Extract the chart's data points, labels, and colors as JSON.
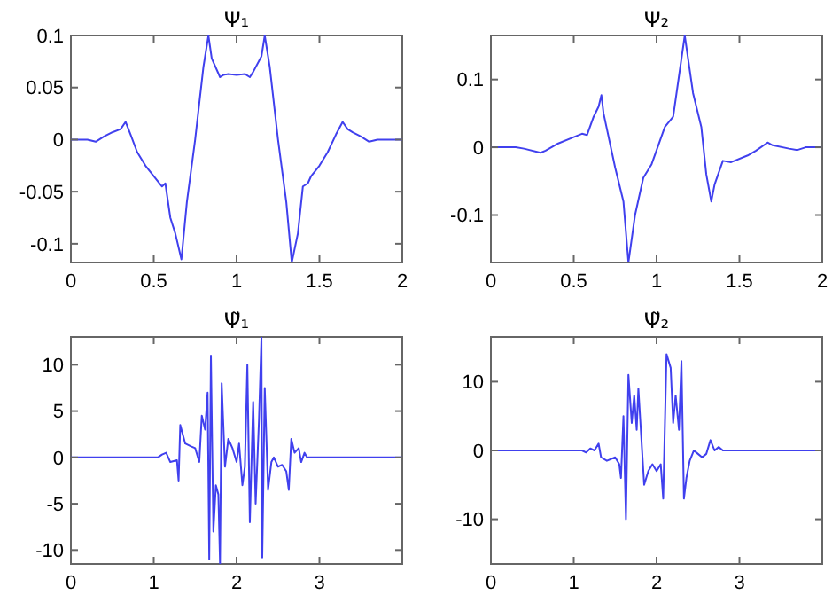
{
  "chart_data": [
    {
      "type": "line",
      "title": "Ψ₁",
      "xlim": [
        0,
        2
      ],
      "ylim": [
        -0.118,
        0.1
      ],
      "xticks": [
        0,
        0.5,
        1,
        1.5,
        2
      ],
      "yticks": [
        -0.1,
        -0.05,
        0,
        0.05,
        0.1
      ],
      "color": "#4040ee",
      "x": [
        0,
        0.1,
        0.15,
        0.2,
        0.25,
        0.3,
        0.33,
        0.36,
        0.4,
        0.45,
        0.5,
        0.55,
        0.57,
        0.6,
        0.63,
        0.667,
        0.7,
        0.75,
        0.8,
        0.83,
        0.85,
        0.9,
        0.92,
        0.95,
        1.0,
        1.05,
        1.08,
        1.1,
        1.15,
        1.17,
        1.2,
        1.25,
        1.3,
        1.333,
        1.37,
        1.4,
        1.43,
        1.45,
        1.5,
        1.55,
        1.6,
        1.64,
        1.67,
        1.7,
        1.75,
        1.8,
        1.85,
        1.9,
        2
      ],
      "values": [
        0,
        0,
        -0.002,
        0.003,
        0.007,
        0.01,
        0.017,
        0.005,
        -0.012,
        -0.025,
        -0.035,
        -0.045,
        -0.042,
        -0.075,
        -0.09,
        -0.115,
        -0.06,
        0,
        0.07,
        0.1,
        0.078,
        0.06,
        0.062,
        0.063,
        0.062,
        0.063,
        0.06,
        0.065,
        0.08,
        0.1,
        0.07,
        0,
        -0.06,
        -0.118,
        -0.09,
        -0.045,
        -0.042,
        -0.035,
        -0.025,
        -0.012,
        0.005,
        0.017,
        0.01,
        0.007,
        0.003,
        -0.002,
        0,
        0,
        0
      ]
    },
    {
      "type": "line",
      "title": "Ψ₂",
      "xlim": [
        0,
        2
      ],
      "ylim": [
        -0.17,
        0.165
      ],
      "xticks": [
        0,
        0.5,
        1,
        1.5,
        2
      ],
      "yticks": [
        -0.1,
        0,
        0.1
      ],
      "color": "#4040ee",
      "x": [
        0,
        0.15,
        0.2,
        0.3,
        0.33,
        0.4,
        0.5,
        0.55,
        0.58,
        0.62,
        0.65,
        0.667,
        0.68,
        0.75,
        0.8,
        0.83,
        0.87,
        0.92,
        0.97,
        1.05,
        1.1,
        1.17,
        1.22,
        1.27,
        1.3,
        1.33,
        1.35,
        1.4,
        1.45,
        1.55,
        1.6,
        1.67,
        1.7,
        1.8,
        1.85,
        1.9,
        2
      ],
      "values": [
        0,
        0,
        -0.002,
        -0.008,
        -0.005,
        0.005,
        0.015,
        0.02,
        0.018,
        0.045,
        0.06,
        0.077,
        0.05,
        -0.03,
        -0.08,
        -0.17,
        -0.1,
        -0.045,
        -0.025,
        0.03,
        0.045,
        0.165,
        0.08,
        0.03,
        -0.04,
        -0.08,
        -0.055,
        -0.02,
        -0.022,
        -0.012,
        -0.005,
        0.007,
        0.003,
        -0.002,
        -0.004,
        0,
        0
      ]
    },
    {
      "type": "line",
      "title": "Ψ̃₁",
      "xlim": [
        0,
        4
      ],
      "ylim": [
        -11.5,
        13
      ],
      "xticks": [
        0,
        1,
        2,
        3
      ],
      "yticks": [
        -10,
        -5,
        0,
        5,
        10
      ],
      "color": "#4040ee",
      "x": [
        0,
        1.05,
        1.1,
        1.15,
        1.2,
        1.28,
        1.3,
        1.32,
        1.38,
        1.45,
        1.5,
        1.55,
        1.58,
        1.62,
        1.65,
        1.67,
        1.69,
        1.72,
        1.75,
        1.78,
        1.8,
        1.82,
        1.86,
        1.9,
        1.95,
        2.0,
        2.03,
        2.07,
        2.1,
        2.13,
        2.16,
        2.2,
        2.23,
        2.27,
        2.3,
        2.31,
        2.34,
        2.38,
        2.42,
        2.45,
        2.5,
        2.55,
        2.6,
        2.63,
        2.66,
        2.7,
        2.75,
        2.78,
        2.82,
        2.85,
        2.9,
        4
      ],
      "values": [
        0,
        0,
        0.3,
        0.5,
        -0.5,
        -0.3,
        -2.5,
        3.5,
        1.5,
        1.2,
        1,
        -0.5,
        4.5,
        3,
        7,
        -11,
        11,
        -8,
        -3,
        -4,
        -11.5,
        8,
        -1,
        2,
        1,
        -0.5,
        1.5,
        -3,
        -1,
        10,
        -7,
        6,
        -5,
        4,
        13,
        -10.8,
        7.5,
        -3.5,
        -0.5,
        0,
        -1,
        -0.8,
        -1.5,
        -3.5,
        2,
        0.5,
        1,
        -0.5,
        0.5,
        0,
        0,
        0
      ]
    },
    {
      "type": "line",
      "title": "Ψ̃₂",
      "xlim": [
        0,
        4
      ],
      "ylim": [
        -16.5,
        16.5
      ],
      "xticks": [
        0,
        1,
        2,
        3
      ],
      "yticks": [
        -10,
        0,
        10
      ],
      "color": "#4040ee",
      "x": [
        0,
        1.1,
        1.15,
        1.2,
        1.25,
        1.3,
        1.33,
        1.4,
        1.5,
        1.55,
        1.57,
        1.6,
        1.63,
        1.66,
        1.7,
        1.73,
        1.76,
        1.78,
        1.8,
        1.81,
        1.85,
        1.9,
        1.95,
        2.0,
        2.05,
        2.08,
        2.12,
        2.14,
        2.17,
        2.2,
        2.23,
        2.27,
        2.3,
        2.33,
        2.36,
        2.4,
        2.45,
        2.5,
        2.55,
        2.6,
        2.65,
        2.7,
        2.75,
        2.8,
        2.85,
        4
      ],
      "values": [
        0,
        0,
        -0.3,
        0.3,
        0,
        1,
        -1,
        -1.5,
        -1,
        -2,
        -4,
        5,
        -10,
        11,
        4,
        8,
        3,
        9,
        null,
        null,
        -5,
        -3,
        -2,
        -3,
        -2,
        -7,
        14,
        null,
        12,
        4,
        8,
        3,
        13,
        -7,
        -4,
        -1.5,
        0,
        -0.5,
        -1,
        -0.5,
        1.5,
        0,
        0.5,
        0,
        0,
        0
      ]
    }
  ]
}
